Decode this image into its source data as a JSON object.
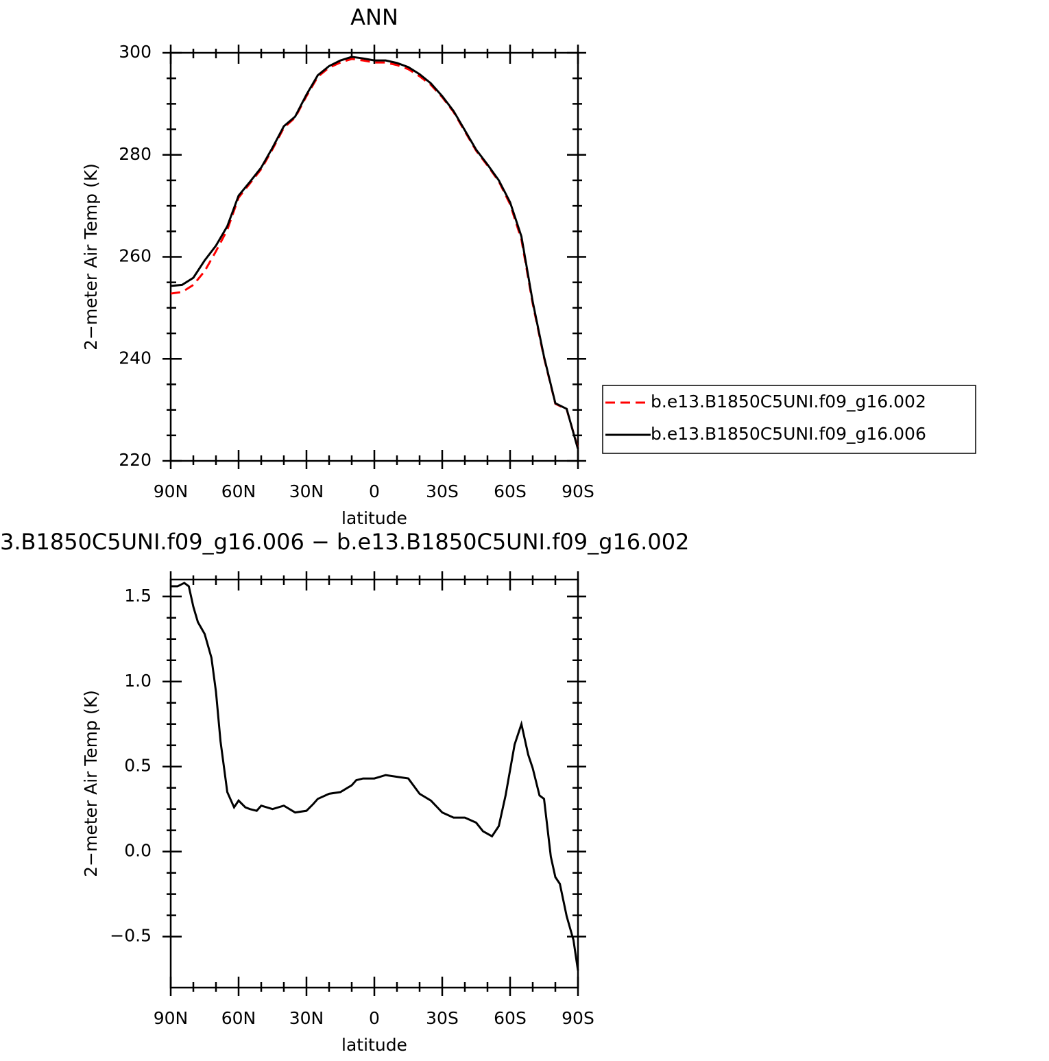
{
  "chart_data": [
    {
      "type": "line",
      "title": "ANN",
      "xlabel": "latitude",
      "ylabel": "2−meter Air Temp (K)",
      "x": [
        90,
        85,
        80,
        75,
        70,
        65,
        60,
        55,
        50,
        45,
        40,
        35,
        30,
        25,
        20,
        15,
        10,
        5,
        0,
        -5,
        -10,
        -15,
        -20,
        -25,
        -30,
        -35,
        -40,
        -45,
        -50,
        -55,
        -60,
        -65,
        -70,
        -75,
        -80,
        -85,
        -90
      ],
      "series": [
        {
          "name": "b.e13.B1850C5UNI.f09_g16.002",
          "color": "#ff0000",
          "line_style": "dashed",
          "values": [
            252.8,
            253.1,
            254.5,
            257.2,
            261.1,
            265.3,
            271.6,
            274.4,
            277.2,
            281.1,
            285.3,
            287.3,
            291.5,
            295.3,
            297.1,
            298.1,
            298.8,
            298.5,
            298.1,
            298.1,
            297.6,
            296.8,
            295.4,
            293.7,
            291.3,
            288.4,
            284.6,
            280.8,
            277.9,
            274.8,
            270.3,
            263.4,
            250.8,
            240.2,
            231.2,
            230.1,
            222.5
          ]
        },
        {
          "name": "b.e13.B1850C5UNI.f09_g16.006",
          "color": "#000000",
          "line_style": "solid",
          "values": [
            254.3,
            254.5,
            255.9,
            259.3,
            262.2,
            266.0,
            272.0,
            274.7,
            277.5,
            281.4,
            285.6,
            287.5,
            291.8,
            295.6,
            297.4,
            298.5,
            299.2,
            298.9,
            298.5,
            298.5,
            298.0,
            297.2,
            295.8,
            294.0,
            291.5,
            288.6,
            284.8,
            281.0,
            278.1,
            275.0,
            270.7,
            264.0,
            251.2,
            240.4,
            231.3,
            230.2,
            222.3
          ]
        }
      ],
      "xlim": [
        90,
        -90
      ],
      "xticks": [
        {
          "value": 90,
          "label": "90N"
        },
        {
          "value": 60,
          "label": "60N"
        },
        {
          "value": 30,
          "label": "30N"
        },
        0,
        {
          "value": -30,
          "label": "30S"
        },
        {
          "value": -60,
          "label": "60S"
        },
        {
          "value": -90,
          "label": "90S"
        }
      ],
      "ylim": [
        220,
        300
      ],
      "yticks": [
        220,
        240,
        260,
        280,
        300
      ],
      "legend": "right"
    },
    {
      "type": "line",
      "title": "3.B1850C5UNI.f09_g16.006 − b.e13.B1850C5UNI.f09_g16.002",
      "xlabel": "latitude",
      "ylabel": "2−meter Air Temp (K)",
      "x": [
        90,
        87,
        84,
        82,
        80,
        78,
        75,
        72,
        70,
        68,
        65,
        62,
        60,
        57,
        55,
        52,
        50,
        45,
        40,
        35,
        30,
        27,
        25,
        20,
        15,
        10,
        8,
        5,
        0,
        -5,
        -10,
        -15,
        -20,
        -25,
        -30,
        -35,
        -40,
        -45,
        -48,
        -52,
        -55,
        -58,
        -62,
        -65,
        -68,
        -70,
        -73,
        -75,
        -78,
        -80,
        -82,
        -85,
        -88,
        -90
      ],
      "values": [
        1.56,
        1.56,
        1.58,
        1.56,
        1.44,
        1.35,
        1.28,
        1.14,
        0.94,
        0.65,
        0.35,
        0.26,
        0.3,
        0.26,
        0.25,
        0.24,
        0.27,
        0.25,
        0.27,
        0.23,
        0.24,
        0.28,
        0.31,
        0.34,
        0.35,
        0.39,
        0.42,
        0.43,
        0.43,
        0.45,
        0.44,
        0.43,
        0.34,
        0.3,
        0.23,
        0.2,
        0.2,
        0.17,
        0.12,
        0.09,
        0.15,
        0.33,
        0.63,
        0.75,
        0.57,
        0.49,
        0.33,
        0.31,
        -0.03,
        -0.15,
        -0.19,
        -0.38,
        -0.52,
        -0.7
      ],
      "color": "#000000",
      "xlim": [
        90,
        -90
      ],
      "xticks": [
        {
          "value": 90,
          "label": "90N"
        },
        {
          "value": 60,
          "label": "60N"
        },
        {
          "value": 30,
          "label": "30N"
        },
        0,
        {
          "value": -30,
          "label": "30S"
        },
        {
          "value": -60,
          "label": "60S"
        },
        {
          "value": -90,
          "label": "90S"
        }
      ],
      "ylim": [
        -0.8,
        1.6
      ],
      "yticks": [
        {
          "value": -0.5,
          "label": "−0.5"
        },
        {
          "value": 0,
          "label": "0.0"
        },
        {
          "value": 0.5,
          "label": "0.5"
        },
        {
          "value": 1,
          "label": "1.0"
        },
        {
          "value": 1.5,
          "label": "1.5"
        }
      ]
    }
  ]
}
